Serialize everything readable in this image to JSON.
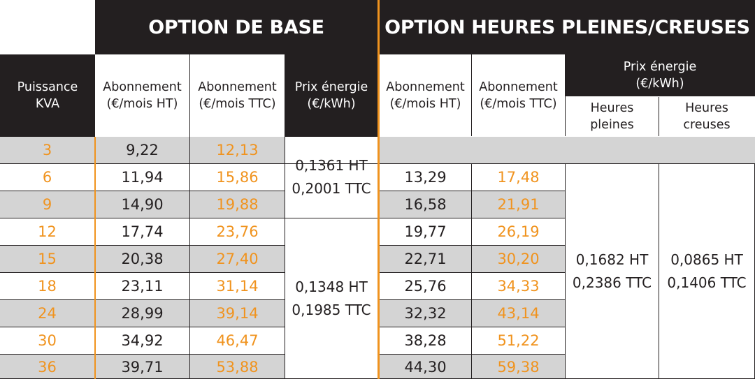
{
  "headers": {
    "base": "OPTION DE BASE",
    "hp_hc": "OPTION HEURES PLEINES/CREUSES",
    "power": "Puissance\nKVA",
    "sub_ht": "Abonnement\n(€/mois HT)",
    "sub_ttc": "Abonnement\n(€/mois TTC)",
    "energy": "Prix énergie\n(€/kWh)",
    "energy_hphc": "Prix énergie\n(€/kWh)",
    "peak": "Heures\npleines",
    "offpeak": "Heures\ncreuses"
  },
  "rows": [
    {
      "kva": "3",
      "base_ht": "9,22",
      "base_ttc": "12,13",
      "hp_ht": "",
      "hp_ttc": ""
    },
    {
      "kva": "6",
      "base_ht": "11,94",
      "base_ttc": "15,86",
      "hp_ht": "13,29",
      "hp_ttc": "17,48"
    },
    {
      "kva": "9",
      "base_ht": "14,90",
      "base_ttc": "19,88",
      "hp_ht": "16,58",
      "hp_ttc": "21,91"
    },
    {
      "kva": "12",
      "base_ht": "17,74",
      "base_ttc": "23,76",
      "hp_ht": "19,77",
      "hp_ttc": "26,19"
    },
    {
      "kva": "15",
      "base_ht": "20,38",
      "base_ttc": "27,40",
      "hp_ht": "22,71",
      "hp_ttc": "30,20"
    },
    {
      "kva": "18",
      "base_ht": "23,11",
      "base_ttc": "31,14",
      "hp_ht": "25,76",
      "hp_ttc": "34,33"
    },
    {
      "kva": "24",
      "base_ht": "28,99",
      "base_ttc": "39,14",
      "hp_ht": "32,32",
      "hp_ttc": "43,14"
    },
    {
      "kva": "30",
      "base_ht": "34,92",
      "base_ttc": "46,47",
      "hp_ht": "38,28",
      "hp_ttc": "51,22"
    },
    {
      "kva": "36",
      "base_ht": "39,71",
      "base_ttc": "53,88",
      "hp_ht": "44,30",
      "hp_ttc": "59,38"
    }
  ],
  "base_energy_low": "0,1361 HT\n0,2001 TTC",
  "base_energy_high": "0,1348 HT\n0,1985 TTC",
  "peak_price": "0,1682 HT\n0,2386 TTC",
  "offpeak_price": "0,0865 HT\n0,1406 TTC",
  "colors": {
    "dark": "#231f20",
    "orange": "#f0931e",
    "grey": "#d4d4d4"
  }
}
